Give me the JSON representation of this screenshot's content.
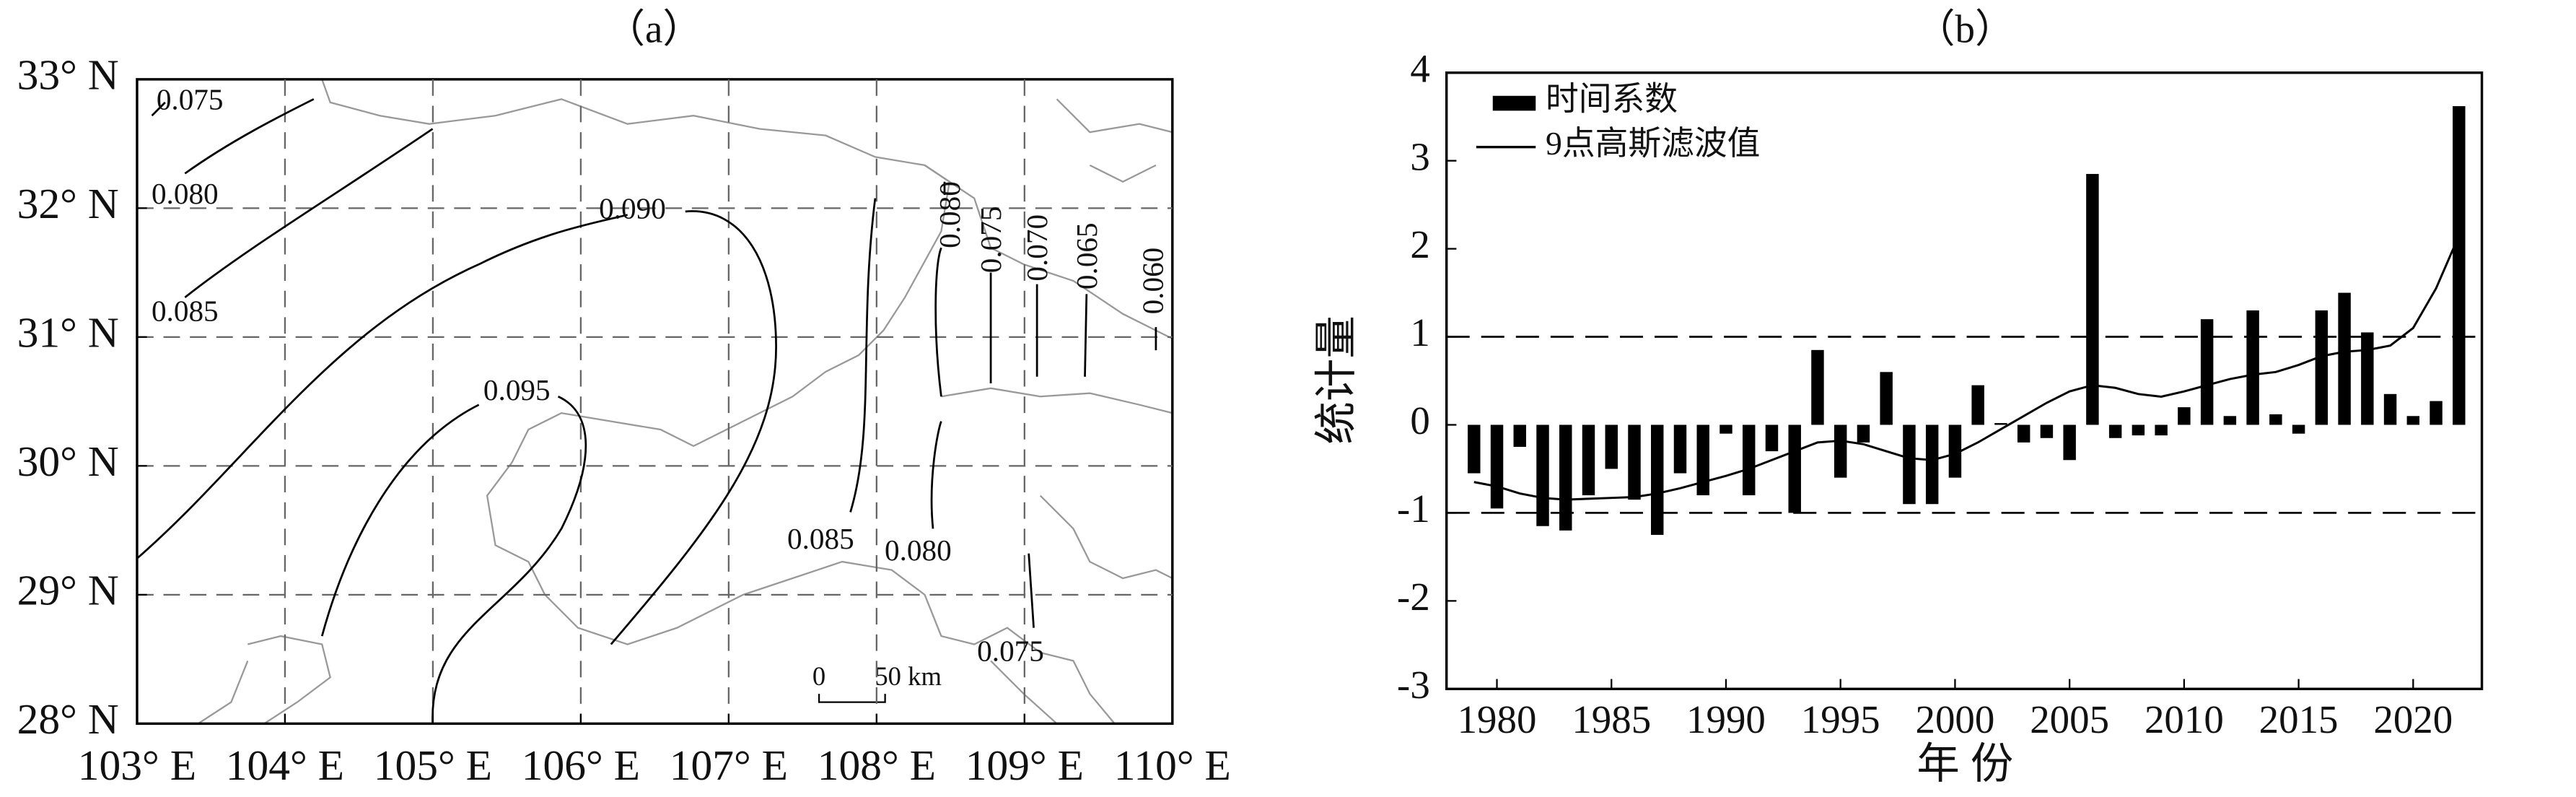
{
  "chart_data": [
    {
      "type": "map",
      "title": "（a）",
      "xlim": [
        103,
        110
      ],
      "ylim": [
        28,
        33
      ],
      "xticks": [
        {
          "value": 103,
          "label": "103° E"
        },
        {
          "value": 104,
          "label": "104° E"
        },
        {
          "value": 105,
          "label": "105° E"
        },
        {
          "value": 106,
          "label": "106° E"
        },
        {
          "value": 107,
          "label": "107° E"
        },
        {
          "value": 108,
          "label": "108° E"
        },
        {
          "value": 109,
          "label": "109° E"
        },
        {
          "value": 110,
          "label": "110° E"
        }
      ],
      "yticks": [
        {
          "value": 28,
          "label": "28° N"
        },
        {
          "value": 29,
          "label": "29° N"
        },
        {
          "value": 30,
          "label": "30° N"
        },
        {
          "value": 31,
          "label": "31° N"
        },
        {
          "value": 32,
          "label": "32° N"
        },
        {
          "value": 33,
          "label": "33° N"
        }
      ],
      "grid": true,
      "contour_labels": [
        0.075,
        {
          "value": 0.08,
          "label": "0.080"
        },
        0.085,
        {
          "value": 0.09,
          "label": "0.090"
        },
        0.095,
        0.085,
        {
          "value": 0.08,
          "label": "0.080"
        },
        {
          "value": 0.08,
          "label": "0.080"
        },
        0.075,
        {
          "value": 0.07,
          "label": "0.070"
        },
        0.065,
        {
          "value": 0.06,
          "label": "0.060"
        },
        0.075
      ],
      "scale_bar": [
        "0",
        "50 km"
      ]
    },
    {
      "type": "bar",
      "title": "（b）",
      "xlabel": "年 份",
      "ylabel": "统计量",
      "x": [
        1979,
        1980,
        1981,
        1982,
        1983,
        1984,
        1985,
        1986,
        1987,
        1988,
        1989,
        1990,
        1991,
        1992,
        1993,
        1994,
        1995,
        1996,
        1997,
        1998,
        1999,
        2000,
        2001,
        2002,
        2003,
        2004,
        2005,
        2006,
        2007,
        2008,
        2009,
        2010,
        2011,
        2012,
        2013,
        2014,
        2015,
        2016,
        2017,
        2018,
        2019,
        2020,
        2021,
        2022
      ],
      "series": [
        {
          "name": "时间系数",
          "color": "#000000",
          "type": "bar",
          "values": [
            -0.55,
            -0.95,
            -0.25,
            -1.15,
            -1.2,
            -0.8,
            -0.5,
            -0.85,
            -1.25,
            -0.55,
            -0.8,
            -0.1,
            -0.8,
            -0.3,
            -1.0,
            0.85,
            -0.6,
            -0.2,
            0.6,
            -0.9,
            -0.9,
            -0.6,
            0.45,
            0.02,
            -0.2,
            -0.15,
            -0.4,
            2.85,
            -0.15,
            -0.12,
            -0.12,
            0.2,
            1.2,
            0.1,
            1.3,
            0.12,
            -0.1,
            1.3,
            1.5,
            1.05,
            0.35,
            0.1,
            0.27,
            3.62
          ]
        },
        {
          "name": "9点高斯滤波值",
          "color": "#000000",
          "type": "line",
          "values": [
            -0.65,
            -0.7,
            -0.78,
            -0.83,
            -0.85,
            -0.84,
            -0.83,
            -0.82,
            -0.78,
            -0.72,
            -0.65,
            -0.58,
            -0.5,
            -0.4,
            -0.3,
            -0.2,
            -0.18,
            -0.22,
            -0.3,
            -0.38,
            -0.4,
            -0.33,
            -0.2,
            -0.05,
            0.1,
            0.25,
            0.38,
            0.45,
            0.42,
            0.35,
            0.32,
            0.38,
            0.45,
            0.52,
            0.57,
            0.6,
            0.68,
            0.78,
            0.83,
            0.85,
            0.9,
            1.1,
            1.55,
            2.15
          ]
        }
      ],
      "xlim": [
        1977.8,
        2023
      ],
      "ylim": [
        -3,
        4
      ],
      "xticks": [
        1980,
        1985,
        1990,
        1995,
        2000,
        2005,
        2010,
        2015,
        2020
      ],
      "yticks": [
        -3,
        -2,
        -1,
        0,
        1,
        2,
        3,
        4
      ],
      "reference_lines": [
        1,
        -1
      ],
      "legend": "upper left"
    }
  ]
}
